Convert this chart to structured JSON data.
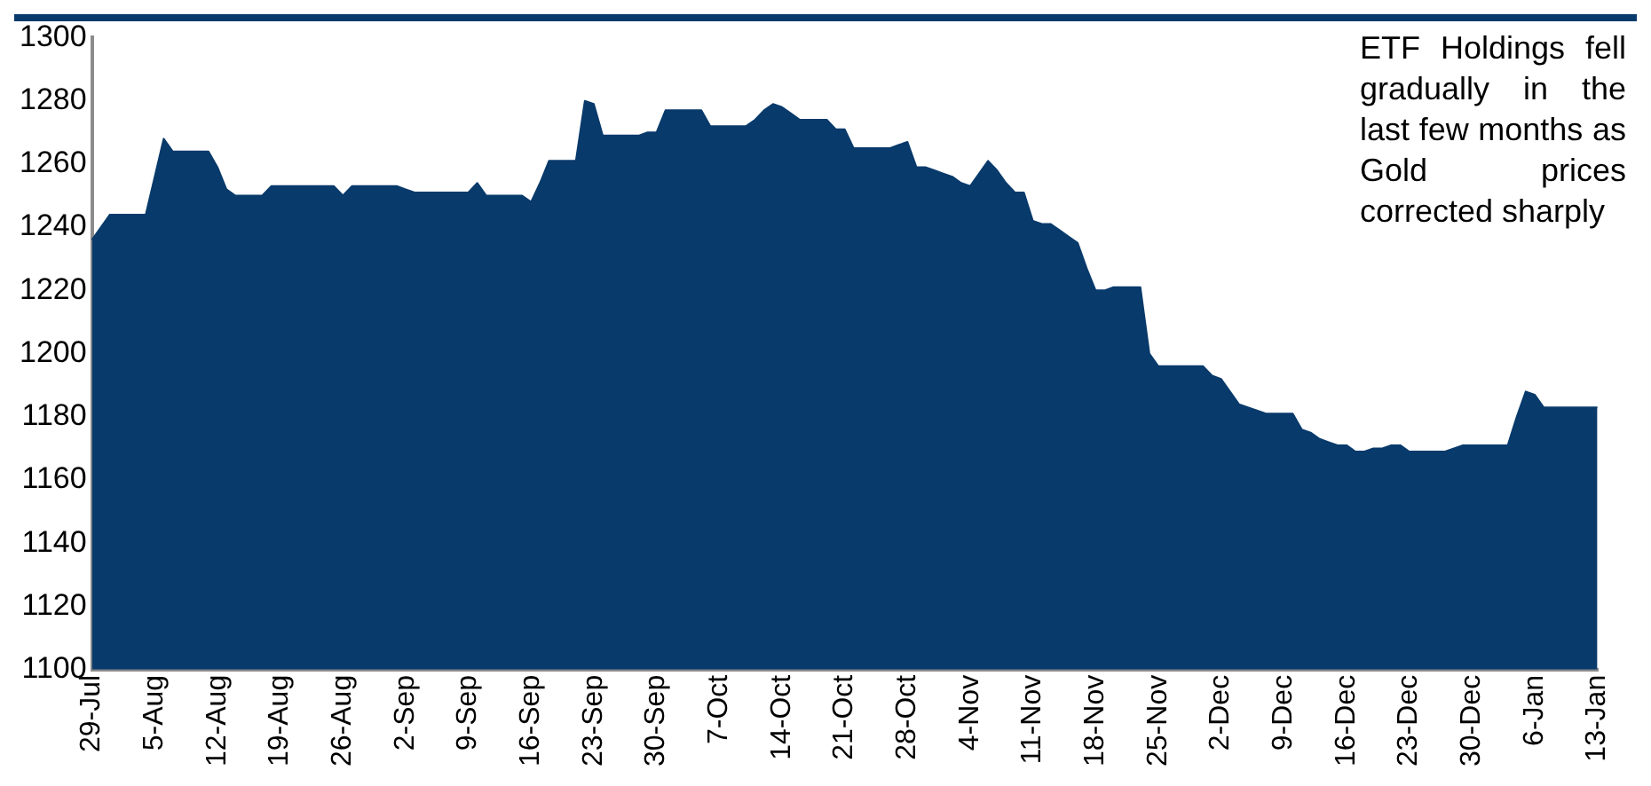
{
  "chart_data": {
    "type": "area",
    "categories": [
      "29-Jul",
      null,
      null,
      null,
      null,
      null,
      null,
      "5-Aug",
      null,
      null,
      null,
      null,
      null,
      null,
      "12-Aug",
      null,
      null,
      null,
      null,
      null,
      null,
      "19-Aug",
      null,
      null,
      null,
      null,
      null,
      null,
      "26-Aug",
      null,
      null,
      null,
      null,
      null,
      null,
      "2-Sep",
      null,
      null,
      null,
      null,
      null,
      null,
      "9-Sep",
      null,
      null,
      null,
      null,
      null,
      null,
      "16-Sep",
      null,
      null,
      null,
      null,
      null,
      null,
      "23-Sep",
      null,
      null,
      null,
      null,
      null,
      null,
      "30-Sep",
      null,
      null,
      null,
      null,
      null,
      null,
      "7-Oct",
      null,
      null,
      null,
      null,
      null,
      null,
      "14-Oct",
      null,
      null,
      null,
      null,
      null,
      null,
      "21-Oct",
      null,
      null,
      null,
      null,
      null,
      null,
      "28-Oct",
      null,
      null,
      null,
      null,
      null,
      null,
      "4-Nov",
      null,
      null,
      null,
      null,
      null,
      null,
      "11-Nov",
      null,
      null,
      null,
      null,
      null,
      null,
      "18-Nov",
      null,
      null,
      null,
      null,
      null,
      null,
      "25-Nov",
      null,
      null,
      null,
      null,
      null,
      null,
      "2-Dec",
      null,
      null,
      null,
      null,
      null,
      null,
      "9-Dec",
      null,
      null,
      null,
      null,
      null,
      null,
      "16-Dec",
      null,
      null,
      null,
      null,
      null,
      null,
      "23-Dec",
      null,
      null,
      null,
      null,
      null,
      null,
      "30-Dec",
      null,
      null,
      null,
      null,
      null,
      null,
      "6-Jan",
      null,
      null,
      null,
      null,
      null,
      null,
      "13-Jan"
    ],
    "series": [
      {
        "color": "#083a6b",
        "values": [
          1236,
          1240,
          1244,
          1244,
          1244,
          1244,
          1244,
          1256,
          1268,
          1264,
          1264,
          1264,
          1264,
          1264,
          1259,
          1252,
          1250,
          1250,
          1250,
          1250,
          1253,
          1253,
          1253,
          1253,
          1253,
          1253,
          1253,
          1253,
          1250,
          1253,
          1253,
          1253,
          1253,
          1253,
          1253,
          1252,
          1251,
          1251,
          1251,
          1251,
          1251,
          1251,
          1251,
          1254,
          1250,
          1250,
          1250,
          1250,
          1250,
          1248,
          1254,
          1261,
          1261,
          1261,
          1261,
          1280,
          1279,
          1269,
          1269,
          1269,
          1269,
          1269,
          1270,
          1270,
          1277,
          1277,
          1277,
          1277,
          1277,
          1272,
          1272,
          1272,
          1272,
          1272,
          1274,
          1277,
          1279,
          1278,
          1276,
          1274,
          1274,
          1274,
          1274,
          1271,
          1271,
          1265,
          1265,
          1265,
          1265,
          1265,
          1266,
          1267,
          1259,
          1259,
          1258,
          1257,
          1256,
          1254,
          1253,
          1257,
          1261,
          1258,
          1254,
          1251,
          1251,
          1242,
          1241,
          1241,
          1239,
          1237,
          1235,
          1227,
          1220,
          1220,
          1221,
          1221,
          1221,
          1221,
          1200,
          1196,
          1196,
          1196,
          1196,
          1196,
          1196,
          1193,
          1192,
          1188,
          1184,
          1183,
          1182,
          1181,
          1181,
          1181,
          1181,
          1176,
          1175,
          1173,
          1172,
          1171,
          1171,
          1169,
          1169,
          1170,
          1170,
          1171,
          1171,
          1169,
          1169,
          1169,
          1169,
          1169,
          1170,
          1171,
          1171,
          1171,
          1171,
          1171,
          1171,
          1180,
          1188,
          1187,
          1183,
          1183,
          1183,
          1183,
          1183,
          1183,
          1183
        ]
      }
    ],
    "ylim": [
      1100,
      1300
    ],
    "yticks": [
      1100,
      1120,
      1140,
      1160,
      1180,
      1200,
      1220,
      1240,
      1260,
      1280,
      1300
    ],
    "annotations": [
      "ETF Holdings fell gradually in the last few months as Gold prices corrected sharply"
    ],
    "grid": false,
    "legend": false
  }
}
